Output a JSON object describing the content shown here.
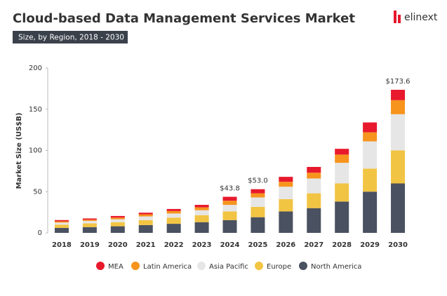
{
  "chart_data": {
    "type": "stacked_bar",
    "title": "Cloud-based Data Management Services Market",
    "subtitle": "Size, by Region, 2018 - 2030",
    "logo": "elinext",
    "y_label": "Market Size (US$B)",
    "categories": [
      "2018",
      "2019",
      "2020",
      "2021",
      "2022",
      "2023",
      "2024",
      "2025",
      "2026",
      "2027",
      "2028",
      "2029",
      "2030"
    ],
    "series": [
      {
        "name": "North America",
        "color": "#4a5160",
        "values": [
          6,
          7,
          8,
          9.5,
          11,
          13,
          15.5,
          19,
          26,
          30,
          38,
          50,
          60
        ]
      },
      {
        "name": "Europe",
        "color": "#f2c443",
        "values": [
          4,
          4.5,
          5,
          6,
          7.5,
          8.5,
          10.5,
          12.5,
          15,
          18,
          22,
          28,
          40
        ]
      },
      {
        "name": "Asia Pacific",
        "color": "#e6e6e6",
        "values": [
          2.5,
          3,
          3.5,
          4.5,
          5,
          6,
          8,
          11.5,
          15,
          18,
          25,
          33,
          44
        ]
      },
      {
        "name": "Latin America",
        "color": "#f7941d",
        "values": [
          1.5,
          1.5,
          2,
          2.5,
          3,
          3.5,
          5,
          5,
          6,
          7,
          10,
          11,
          17
        ]
      },
      {
        "name": "MEA",
        "color": "#e8192c",
        "values": [
          1.5,
          1.5,
          2,
          2,
          2.5,
          3,
          4.8,
          5,
          6,
          7,
          7,
          12,
          12.6
        ]
      }
    ],
    "annotations": [
      {
        "x": "2024",
        "text": "$43.8"
      },
      {
        "x": "2025",
        "text": "$53.0"
      },
      {
        "x": "2030",
        "text": "$173.6"
      }
    ],
    "ylim": [
      0,
      200
    ],
    "yticks": [
      0,
      50,
      100,
      150,
      200
    ]
  }
}
